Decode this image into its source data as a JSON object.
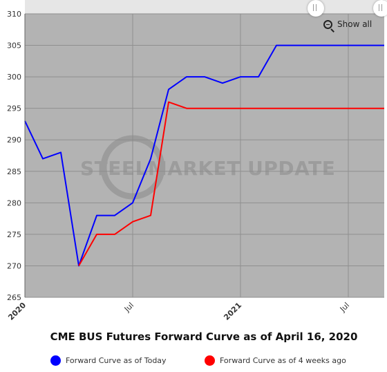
{
  "chart_data": {
    "type": "line",
    "title": "CME BUS Futures Forward Curve as of April 16, 2020",
    "x_ticks": [
      "2020",
      "Jul",
      "2021",
      "Jul"
    ],
    "ylim": [
      265,
      310
    ],
    "y_ticks": [
      265,
      270,
      275,
      280,
      285,
      290,
      295,
      300,
      305,
      310
    ],
    "grid": true,
    "legend_position": "bottom",
    "watermark": "STEELMARKET UPDATE",
    "series": [
      {
        "name": "Forward Curve as of Today",
        "color": "#0000ff",
        "points": [
          [
            "2020-01",
            293
          ],
          [
            "2020-02",
            287
          ],
          [
            "2020-03",
            288
          ],
          [
            "2020-04",
            270
          ],
          [
            "2020-05",
            278
          ],
          [
            "2020-06",
            278
          ],
          [
            "2020-07",
            280
          ],
          [
            "2020-08",
            287
          ],
          [
            "2020-09",
            298
          ],
          [
            "2020-10",
            300
          ],
          [
            "2020-11",
            300
          ],
          [
            "2020-12",
            299
          ],
          [
            "2021-01",
            300
          ],
          [
            "2021-02",
            300
          ],
          [
            "2021-03",
            305
          ],
          [
            "2021-04",
            305
          ],
          [
            "2021-05",
            305
          ],
          [
            "2021-06",
            305
          ],
          [
            "2021-07",
            305
          ],
          [
            "2021-08",
            305
          ],
          [
            "2021-09",
            305
          ]
        ]
      },
      {
        "name": "Forward Curve as of 4 weeks ago",
        "color": "#ff0000",
        "points": [
          [
            "2020-04",
            270
          ],
          [
            "2020-05",
            275
          ],
          [
            "2020-06",
            275
          ],
          [
            "2020-07",
            277
          ],
          [
            "2020-08",
            278
          ],
          [
            "2020-09",
            296
          ],
          [
            "2020-10",
            295
          ],
          [
            "2020-11",
            295
          ],
          [
            "2020-12",
            295
          ],
          [
            "2021-01",
            295
          ],
          [
            "2021-02",
            295
          ],
          [
            "2021-03",
            295
          ],
          [
            "2021-04",
            295
          ],
          [
            "2021-05",
            295
          ],
          [
            "2021-06",
            295
          ],
          [
            "2021-07",
            295
          ],
          [
            "2021-08",
            295
          ],
          [
            "2021-09",
            295
          ]
        ]
      }
    ]
  },
  "controls": {
    "show_all_label": "Show all",
    "zoom_icon": "zoom-out-icon"
  },
  "colors": {
    "plot_background": "#b3b3b3",
    "gridline": "#8f8f8f"
  }
}
